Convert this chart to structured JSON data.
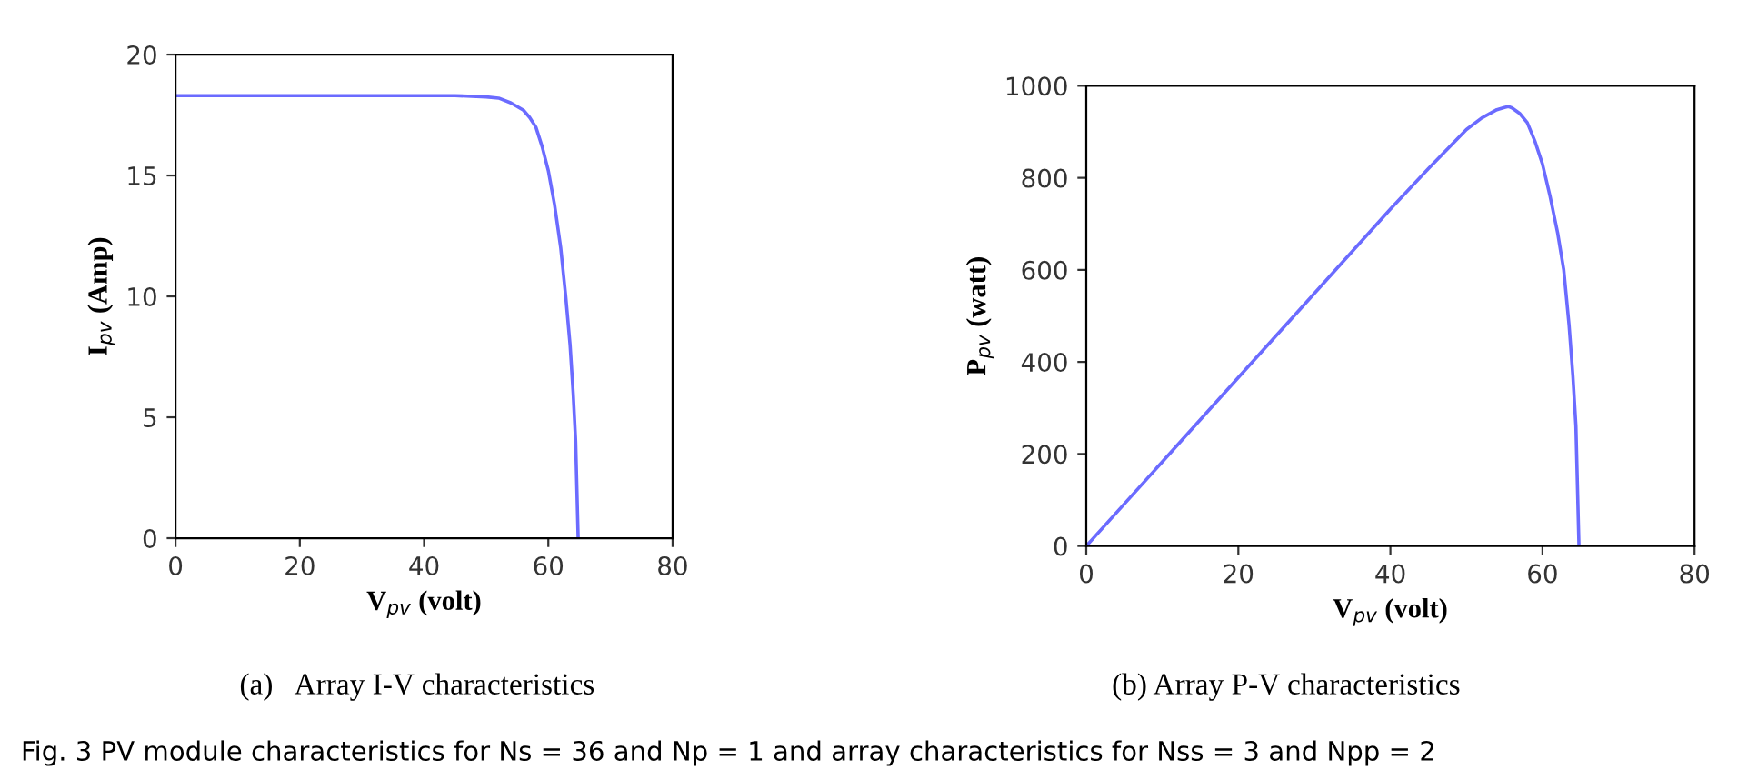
{
  "chart_data": [
    {
      "type": "line",
      "xlabel": "V$_{pv}$ (volt)",
      "ylabel": "I$_{pv}$ (Amp)",
      "xlim": [
        0,
        80
      ],
      "ylim": [
        0,
        20
      ],
      "xticks": [
        0,
        20,
        40,
        60,
        80
      ],
      "yticks": [
        0,
        5,
        10,
        15,
        20
      ],
      "grid": false,
      "legend": false,
      "marker": "none",
      "line_style": "solid",
      "series": [
        {
          "color": "#6b6bff",
          "x": [
            0,
            10,
            20,
            30,
            40,
            45,
            50,
            52,
            54,
            56,
            57,
            58,
            59,
            60,
            61,
            62,
            62.8,
            63.5,
            64,
            64.4,
            64.8
          ],
          "values": [
            18.3,
            18.3,
            18.3,
            18.3,
            18.3,
            18.3,
            18.25,
            18.2,
            18.0,
            17.7,
            17.4,
            17.0,
            16.2,
            15.2,
            13.8,
            12.0,
            10.0,
            8.0,
            6.0,
            4.0,
            0
          ]
        }
      ],
      "annotations": [
        "(a)   Array I-V characteristics",
        "Fig. 3 PV module characteristics for Ns = 36 and Np = 1 and array characteristics for Nss = 3 and Npp = 2"
      ]
    },
    {
      "type": "line",
      "xlabel": "V$_{pv}$ (volt)",
      "ylabel": "P$_{pv}$ (watt)",
      "xlim": [
        0,
        80
      ],
      "ylim": [
        0,
        1000
      ],
      "xticks": [
        0,
        20,
        40,
        60,
        80
      ],
      "yticks": [
        0,
        200,
        400,
        600,
        800,
        1000
      ],
      "grid": false,
      "legend": false,
      "marker": "none",
      "line_style": "solid",
      "series": [
        {
          "color": "#6b6bff",
          "x": [
            0,
            10,
            20,
            30,
            40,
            45,
            50,
            52,
            54,
            55,
            55.5,
            56,
            57,
            58,
            59,
            60,
            61,
            62,
            62.8,
            63.5,
            64,
            64.4,
            64.8
          ],
          "values": [
            0,
            183,
            366,
            549,
            732,
            820,
            905,
            930,
            948,
            953,
            955,
            952,
            940,
            920,
            880,
            830,
            760,
            680,
            600,
            480,
            370,
            260,
            0
          ]
        }
      ],
      "annotations": [
        "(b) Array P-V characteristics"
      ]
    }
  ]
}
